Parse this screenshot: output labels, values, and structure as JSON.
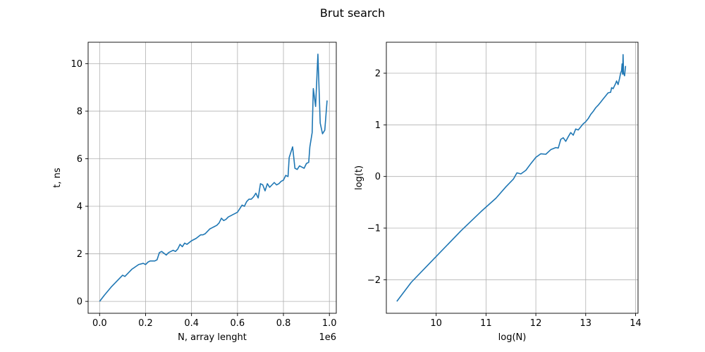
{
  "figure": {
    "title": "Brut search"
  },
  "chart_data": [
    {
      "type": "line",
      "xlabel": "N, array lenght",
      "ylabel": "t, ns",
      "offset_text": "1e6",
      "xlim": [
        -0.05,
        1.03
      ],
      "ylim": [
        -0.5,
        10.9
      ],
      "xticks": [
        0.0,
        0.2,
        0.4,
        0.6,
        0.8,
        1.0
      ],
      "xtick_labels": [
        "0.0",
        "0.2",
        "0.4",
        "0.6",
        "0.8",
        "1.0"
      ],
      "yticks": [
        0,
        2,
        4,
        6,
        8,
        10
      ],
      "ytick_labels": [
        "0",
        "2",
        "4",
        "6",
        "8",
        "10"
      ],
      "grid": true,
      "color": "#1f77b4",
      "series": [
        {
          "x": [
            0.0,
            0.02,
            0.05,
            0.08,
            0.1,
            0.11,
            0.12,
            0.14,
            0.17,
            0.19,
            0.2,
            0.21,
            0.22,
            0.24,
            0.25,
            0.26,
            0.27,
            0.29,
            0.3,
            0.31,
            0.32,
            0.33,
            0.34,
            0.35,
            0.36,
            0.37,
            0.38,
            0.4,
            0.42,
            0.44,
            0.45,
            0.46,
            0.47,
            0.48,
            0.49,
            0.5,
            0.51,
            0.52,
            0.53,
            0.54,
            0.55,
            0.56,
            0.57,
            0.58,
            0.59,
            0.6,
            0.61,
            0.62,
            0.63,
            0.64,
            0.65,
            0.66,
            0.67,
            0.68,
            0.69,
            0.7,
            0.71,
            0.72,
            0.73,
            0.74,
            0.75,
            0.76,
            0.77,
            0.78,
            0.79,
            0.8,
            0.81,
            0.82,
            0.825,
            0.83,
            0.84,
            0.85,
            0.86,
            0.87,
            0.88,
            0.89,
            0.9,
            0.91,
            0.915,
            0.925,
            0.93,
            0.94,
            0.95,
            0.96,
            0.97,
            0.98,
            0.99
          ],
          "y": [
            0.0,
            0.25,
            0.6,
            0.9,
            1.1,
            1.05,
            1.15,
            1.35,
            1.55,
            1.6,
            1.55,
            1.65,
            1.7,
            1.7,
            1.75,
            2.05,
            2.1,
            1.95,
            2.05,
            2.1,
            2.15,
            2.1,
            2.2,
            2.4,
            2.3,
            2.45,
            2.4,
            2.55,
            2.65,
            2.8,
            2.8,
            2.85,
            2.95,
            3.05,
            3.1,
            3.15,
            3.2,
            3.3,
            3.5,
            3.4,
            3.45,
            3.55,
            3.6,
            3.65,
            3.7,
            3.75,
            3.9,
            4.05,
            4.0,
            4.2,
            4.3,
            4.3,
            4.4,
            4.55,
            4.35,
            4.95,
            4.9,
            4.65,
            4.95,
            4.8,
            4.9,
            5.0,
            4.9,
            4.95,
            5.05,
            5.1,
            5.3,
            5.25,
            6.05,
            6.2,
            6.5,
            5.6,
            5.55,
            5.7,
            5.65,
            5.6,
            5.8,
            5.85,
            6.5,
            7.1,
            8.95,
            8.2,
            10.4,
            7.5,
            7.05,
            7.2,
            8.45
          ]
        }
      ]
    },
    {
      "type": "line",
      "xlabel": "log(N)",
      "ylabel": "log(t)",
      "xlim": [
        9.0,
        14.05
      ],
      "ylim": [
        -2.65,
        2.6
      ],
      "xticks": [
        10,
        11,
        12,
        13,
        14
      ],
      "xtick_labels": [
        "10",
        "11",
        "12",
        "13",
        "14"
      ],
      "yticks": [
        -2,
        -1,
        0,
        1,
        2
      ],
      "ytick_labels": [
        "−2",
        "−1",
        "0",
        "1",
        "2"
      ],
      "grid": true,
      "color": "#1f77b4",
      "series": [
        {
          "x": [
            9.21,
            9.5,
            10.0,
            10.5,
            10.9,
            11.2,
            11.4,
            11.55,
            11.62,
            11.7,
            11.8,
            11.9,
            12.0,
            12.1,
            12.2,
            12.3,
            12.4,
            12.45,
            12.5,
            12.55,
            12.6,
            12.65,
            12.7,
            12.75,
            12.8,
            12.85,
            12.9,
            12.95,
            13.0,
            13.05,
            13.1,
            13.15,
            13.2,
            13.25,
            13.3,
            13.35,
            13.4,
            13.45,
            13.5,
            13.52,
            13.55,
            13.6,
            13.62,
            13.65,
            13.68,
            13.7,
            13.72,
            13.73,
            13.74,
            13.75,
            13.76,
            13.78,
            13.8
          ],
          "y": [
            -2.42,
            -2.05,
            -1.55,
            -1.05,
            -0.68,
            -0.42,
            -0.2,
            -0.05,
            0.07,
            0.05,
            0.12,
            0.25,
            0.37,
            0.44,
            0.43,
            0.52,
            0.56,
            0.55,
            0.72,
            0.75,
            0.68,
            0.77,
            0.85,
            0.8,
            0.92,
            0.9,
            0.96,
            1.02,
            1.06,
            1.12,
            1.2,
            1.26,
            1.33,
            1.38,
            1.44,
            1.5,
            1.56,
            1.62,
            1.63,
            1.72,
            1.7,
            1.8,
            1.85,
            1.78,
            1.9,
            2.0,
            2.05,
            2.18,
            1.98,
            2.36,
            2.0,
            1.95,
            2.14
          ]
        }
      ]
    }
  ]
}
